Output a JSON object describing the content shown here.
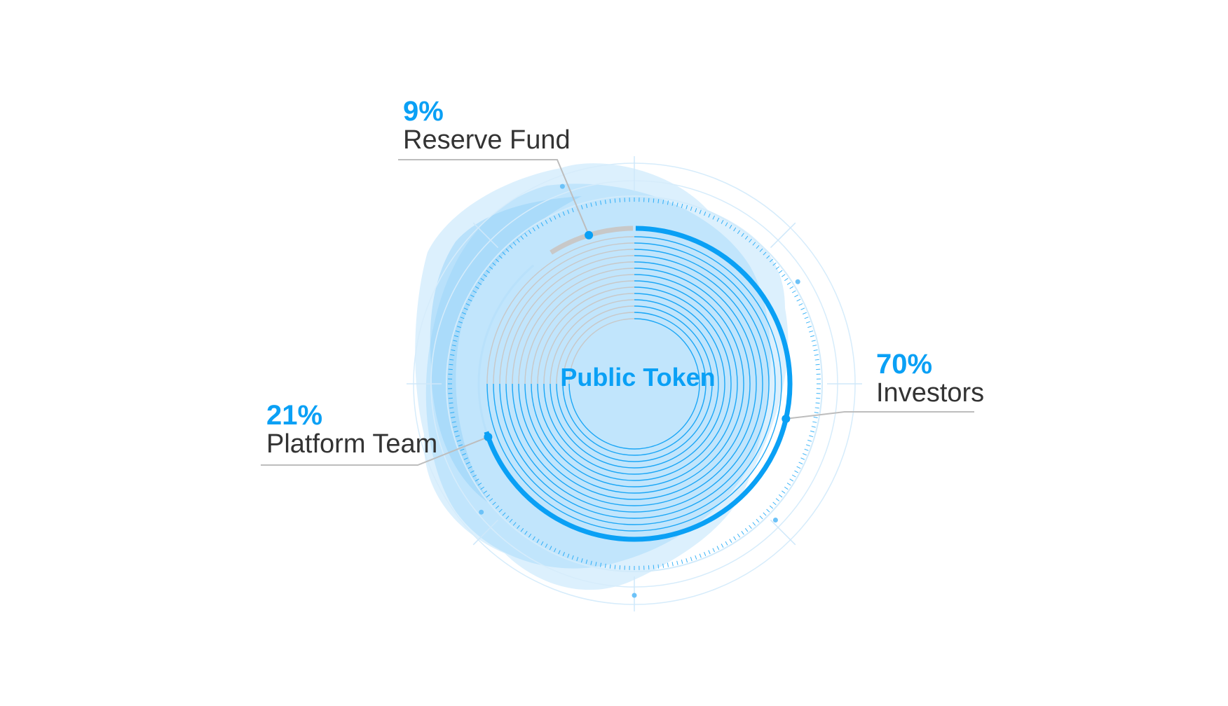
{
  "colors": {
    "accent": "#0aa0f5",
    "light": "#b9e1fb",
    "grey": "#c8c8c8",
    "text": "#333333"
  },
  "chart_data": {
    "type": "pie",
    "title": "Public Token",
    "slices": [
      {
        "label": "Investors",
        "value": 70,
        "value_label": "70%"
      },
      {
        "label": "Platform Team",
        "value": 21,
        "value_label": "21%"
      },
      {
        "label": "Reserve Fund",
        "value": 9,
        "value_label": "9%"
      }
    ]
  }
}
